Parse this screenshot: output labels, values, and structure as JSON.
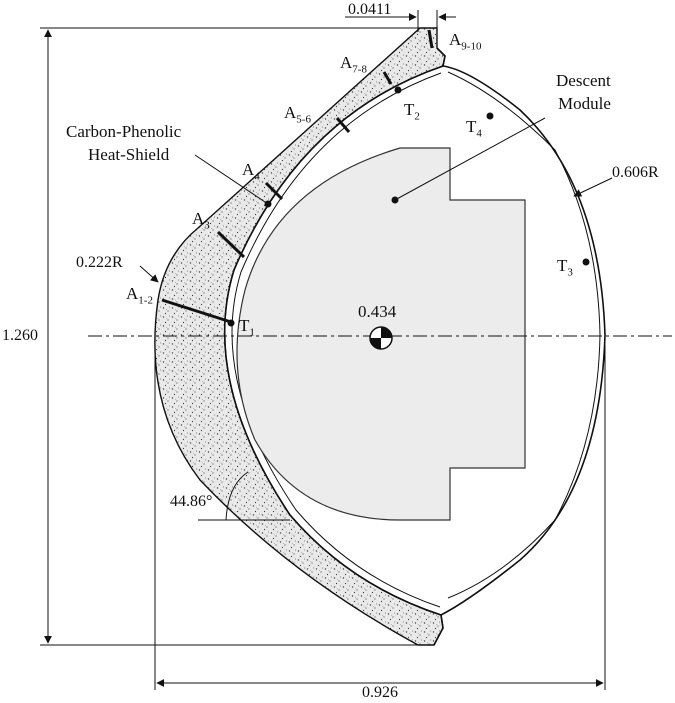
{
  "dimensions": {
    "top_thickness": "0.0411",
    "height": "1.260",
    "width": "0.926",
    "nose_radius": "0.222R",
    "aft_radius": "0.606R",
    "cone_angle": "44.86°",
    "cg": "0.434"
  },
  "labels": {
    "heatshield_line1": "Carbon-Phenolic",
    "heatshield_line2": "Heat-Shield",
    "module_line1": "Descent",
    "module_line2": "Module"
  },
  "points": {
    "a12": {
      "main": "A",
      "sub": "1-2"
    },
    "a3": {
      "main": "A",
      "sub": "3"
    },
    "a4": {
      "main": "A",
      "sub": "4"
    },
    "a56": {
      "main": "A",
      "sub": "5-6"
    },
    "a78": {
      "main": "A",
      "sub": "7-8"
    },
    "a910": {
      "main": "A",
      "sub": "9-10"
    },
    "t1": {
      "main": "T",
      "sub": "1"
    },
    "t2": {
      "main": "T",
      "sub": "2"
    },
    "t3": {
      "main": "T",
      "sub": "3"
    },
    "t4": {
      "main": "T",
      "sub": "4"
    }
  }
}
